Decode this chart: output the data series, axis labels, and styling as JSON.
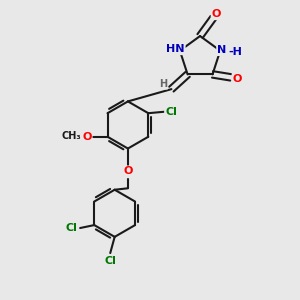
{
  "bg_color": "#e8e8e8",
  "bond_color": "#1a1a1a",
  "bond_width": 1.5,
  "atom_colors": {
    "O": "#ff0000",
    "N": "#0000bb",
    "Cl": "#007700",
    "H": "#666666",
    "C": "#1a1a1a"
  },
  "font_size": 8,
  "fig_width": 3.0,
  "fig_height": 3.0,
  "dpi": 100,
  "xlim": [
    0,
    10
  ],
  "ylim": [
    0,
    10
  ]
}
